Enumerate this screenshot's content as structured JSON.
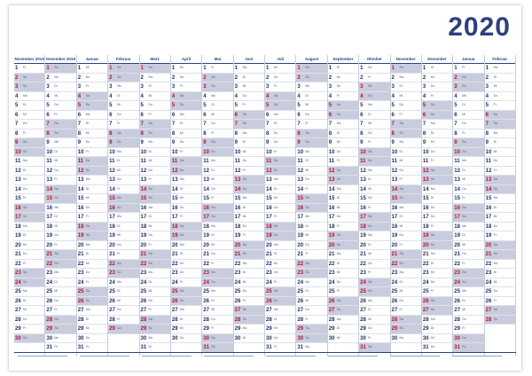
{
  "year": "2020",
  "months": [
    {
      "name": "November 2019",
      "days": 30
    },
    {
      "name": "Dezember 2019",
      "days": 31
    },
    {
      "name": "Januar",
      "days": 31
    },
    {
      "name": "Februar",
      "days": 29
    },
    {
      "name": "März",
      "days": 31
    },
    {
      "name": "April",
      "days": 30
    },
    {
      "name": "Mai",
      "days": 31
    },
    {
      "name": "Juni",
      "days": 30
    },
    {
      "name": "Juli",
      "days": 31
    },
    {
      "name": "August",
      "days": 31
    },
    {
      "name": "September",
      "days": 30
    },
    {
      "name": "Oktober",
      "days": 31
    },
    {
      "name": "November",
      "days": 30
    },
    {
      "name": "Dezember",
      "days": 31
    },
    {
      "name": "Januar",
      "days": 31
    },
    {
      "name": "Februar",
      "days": 28
    }
  ],
  "colors": {
    "accent": "#2d3f7f",
    "weekend": "#c9ccdc",
    "sunday": "#b3113b"
  }
}
